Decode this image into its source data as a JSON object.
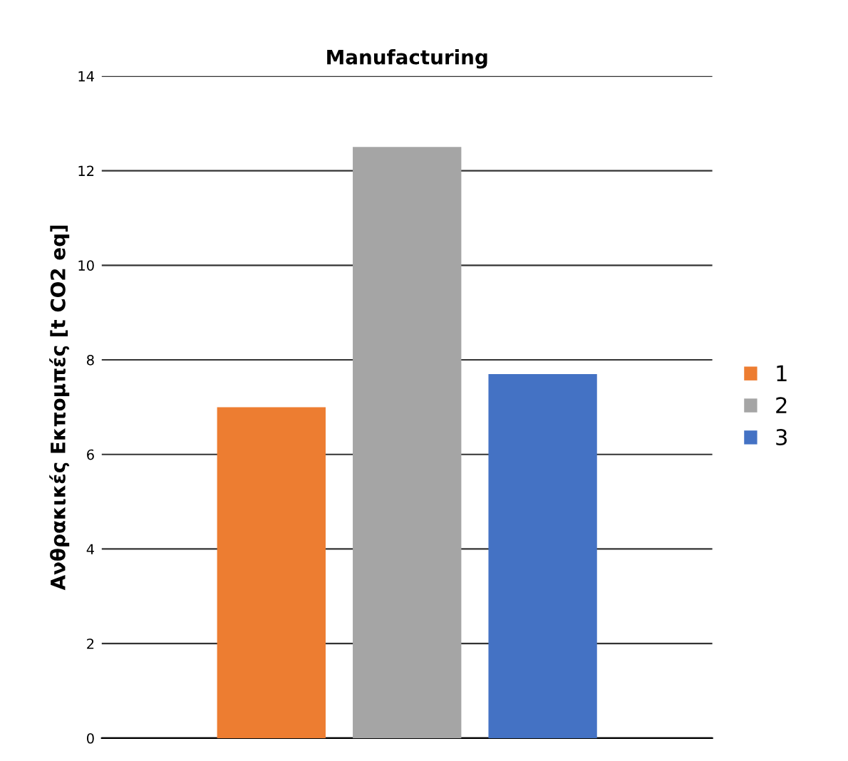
{
  "chart_data": {
    "type": "bar",
    "title": "Manufacturing",
    "ylabel": "Ανθρακικές Εκπομπές [t CO2 eq]",
    "categories": [
      null
    ],
    "series": [
      {
        "name": "1",
        "color": "#ed7d31",
        "values": [
          7.0
        ]
      },
      {
        "name": "2",
        "color": "#a5a5a5",
        "values": [
          12.5
        ]
      },
      {
        "name": "3",
        "color": "#4472c4",
        "values": [
          7.7
        ]
      }
    ],
    "ylim": [
      0,
      14
    ],
    "yticks": [
      0,
      2,
      4,
      6,
      8,
      10,
      12,
      14
    ],
    "grid": "y",
    "legend": "right"
  }
}
